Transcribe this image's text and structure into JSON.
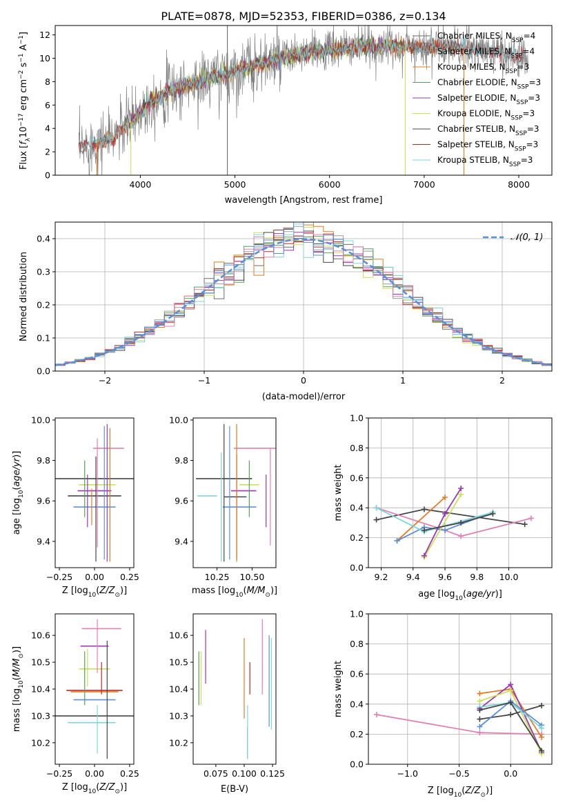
{
  "figure": {
    "title": "PLATE=0878, MJD=52353, FIBERID=0386, z=0.134"
  },
  "colors": {
    "Chabrier MILES": "#6a6a6a",
    "Salpeter MILES": "#999999",
    "Kroupa MILES": "#e07b1f",
    "Chabrier ELODIE": "#55a055",
    "Salpeter ELODIE": "#9b34b5",
    "Kroupa ELODIE": "#c9e05a",
    "Chabrier STELIB": "#444444",
    "Salpeter STELIB": "#c0261f",
    "Kroupa STELIB": "#7fd3dc",
    "gauss": "#5b8fd9",
    "pink": "#e27fb3",
    "blue": "#5b8fd9"
  },
  "chart_data": [
    {
      "id": "spectrum",
      "type": "line",
      "title": "PLATE=0878, MJD=52353, FIBERID=0386, z=0.134",
      "xlabel": "wavelength [Angstrom, rest frame]",
      "ylabel": "Flux [f_λ 10^-17 erg cm^-2 s^-1 A^-1]",
      "xlim": [
        3100,
        8350
      ],
      "ylim": [
        0,
        12.8
      ],
      "xticks": [
        4000,
        5000,
        6000,
        7000,
        8000
      ],
      "yticks": [
        0,
        2,
        4,
        6,
        8,
        10,
        12
      ],
      "legend_position": "top-right",
      "legend": [
        {
          "label": "Chabrier MILES, N_SSP=4",
          "color": "#6a6a6a"
        },
        {
          "label": "Salpeter MILES, N_SSP=4",
          "color": "#999999"
        },
        {
          "label": "Kroupa MILES, N_SSP=3",
          "color": "#e07b1f"
        },
        {
          "label": "Chabrier ELODIE, N_SSP=3",
          "color": "#55a055"
        },
        {
          "label": "Salpeter ELODIE, N_SSP=3",
          "color": "#9b34b5"
        },
        {
          "label": "Kroupa ELODIE, N_SSP=3",
          "color": "#c9e05a"
        },
        {
          "label": "Chabrier STELIB, N_SSP=3",
          "color": "#444444"
        },
        {
          "label": "Salpeter STELIB, N_SSP=3",
          "color": "#c0261f"
        },
        {
          "label": "Kroupa STELIB, N_SSP=3",
          "color": "#7fd3dc"
        }
      ],
      "data_trend": {
        "x": [
          3350,
          3500,
          3700,
          3900,
          4100,
          4300,
          4500,
          4700,
          5000,
          5300,
          5600,
          5900,
          6200,
          6500,
          6800,
          7100,
          7400,
          7700,
          8000,
          8100
        ],
        "y": [
          2.2,
          2.7,
          3.2,
          4.6,
          6.3,
          7.2,
          7.7,
          8.2,
          8.9,
          9.6,
          10.2,
          10.6,
          10.9,
          11.0,
          11.0,
          11.0,
          10.9,
          10.6,
          10.2,
          10.0
        ]
      },
      "model_ranges": [
        {
          "name": "Chabrier MILES",
          "x": [
            3540,
            7420
          ]
        },
        {
          "name": "Salpeter MILES",
          "x": [
            3540,
            7420
          ]
        },
        {
          "name": "Kroupa MILES",
          "x": [
            3540,
            7420
          ]
        },
        {
          "name": "Chabrier ELODIE",
          "x": [
            3900,
            6800
          ]
        },
        {
          "name": "Salpeter ELODIE",
          "x": [
            3900,
            6800
          ]
        },
        {
          "name": "Kroupa ELODIE",
          "x": [
            3900,
            6800
          ]
        },
        {
          "name": "Chabrier STELIB",
          "x": [
            3350,
            8050
          ]
        },
        {
          "name": "Salpeter STELIB",
          "x": [
            3350,
            8050
          ]
        },
        {
          "name": "Kroupa STELIB",
          "x": [
            3350,
            8050
          ]
        }
      ]
    },
    {
      "id": "residuals",
      "type": "line",
      "xlabel": "(data-model)/error",
      "ylabel": "Normed distribution",
      "xlim": [
        -2.5,
        2.5
      ],
      "ylim": [
        0,
        0.45
      ],
      "xticks": [
        -2,
        -1,
        0,
        1,
        2
      ],
      "yticks": [
        0.0,
        0.1,
        0.2,
        0.3,
        0.4
      ],
      "grid": true,
      "legend_position": "top-right",
      "legend": [
        {
          "label": "𝒩(0, 1)",
          "color": "#5b8fd9",
          "style": "dashed"
        }
      ],
      "step_histograms": "one normalized step histogram per model, bin width 0.1, approximately following N(0,1)"
    },
    {
      "id": "age_vs_Z",
      "type": "scatter",
      "xlabel": "Z [log10(Z/Z⊙)]",
      "ylabel": "age  [log10(age/yr)]",
      "xlim": [
        -0.28,
        0.28
      ],
      "ylim": [
        9.27,
        10.01
      ],
      "xticks": [
        -0.25,
        0.0,
        0.25
      ],
      "yticks": [
        9.4,
        9.6,
        9.8,
        10.0
      ],
      "errorbars": [
        {
          "x": 0.0,
          "y": 9.71,
          "xerr": 0.38,
          "yerr": 0.0,
          "color": "#444444"
        },
        {
          "x": 0.1,
          "y": 9.86,
          "xerr": 0.11,
          "yerr": 0.0,
          "color": "#e27fb3"
        },
        {
          "x": 0.02,
          "y": 9.68,
          "xerr": 0.13,
          "yerr": 0.0,
          "color": "#c9e05a"
        },
        {
          "x": 0.0,
          "y": 9.65,
          "xerr": 0.12,
          "yerr": 0.0,
          "color": "#9b34b5"
        },
        {
          "x": 0.0,
          "y": 9.625,
          "xerr": 0.19,
          "yerr": 0.0,
          "color": "#444444"
        },
        {
          "x": 0.0,
          "y": 9.57,
          "xerr": 0.15,
          "yerr": 0.0,
          "color": "#5b8fd9"
        },
        {
          "x": -0.07,
          "y": 9.66,
          "xerr": 0.0,
          "yerr": 0.14,
          "color": "#55a055"
        },
        {
          "x": -0.05,
          "y": 9.6,
          "xerr": 0.0,
          "yerr": 0.13,
          "color": "#9b34b5"
        },
        {
          "x": -0.02,
          "y": 9.57,
          "xerr": 0.0,
          "yerr": 0.09,
          "color": "#e07b1f"
        },
        {
          "x": 0.01,
          "y": 9.56,
          "xerr": 0.0,
          "yerr": 0.26,
          "color": "#444444"
        },
        {
          "x": 0.02,
          "y": 9.64,
          "xerr": 0.0,
          "yerr": 0.27,
          "color": "#e27fb3"
        },
        {
          "x": 0.07,
          "y": 9.64,
          "xerr": 0.0,
          "yerr": 0.33,
          "color": "#5b8fd9"
        },
        {
          "x": 0.09,
          "y": 9.64,
          "xerr": 0.0,
          "yerr": 0.34,
          "color": "#9b34b5"
        },
        {
          "x": 0.11,
          "y": 9.63,
          "xerr": 0.0,
          "yerr": 0.33,
          "color": "#e07b1f"
        }
      ]
    },
    {
      "id": "age_vs_mass",
      "type": "scatter",
      "xlabel": "mass [log10(M/M⊙)]",
      "ylabel": "",
      "xlim": [
        10.08,
        10.67
      ],
      "ylim": [
        9.27,
        10.01
      ],
      "xticks": [
        10.25,
        10.5
      ],
      "yticks": [
        9.4,
        9.6,
        9.8,
        10.0
      ],
      "errorbars": [
        {
          "x": 10.3,
          "y": 9.71,
          "xerr": 0.2,
          "yerr": 0.0,
          "color": "#444444"
        },
        {
          "x": 10.52,
          "y": 9.86,
          "xerr": 0.15,
          "yerr": 0.0,
          "color": "#e27fb3"
        },
        {
          "x": 10.48,
          "y": 9.68,
          "xerr": 0.07,
          "yerr": 0.0,
          "color": "#c9e05a"
        },
        {
          "x": 10.44,
          "y": 9.65,
          "xerr": 0.09,
          "yerr": 0.0,
          "color": "#9b34b5"
        },
        {
          "x": 10.38,
          "y": 9.62,
          "xerr": 0.08,
          "yerr": 0.0,
          "color": "#444444"
        },
        {
          "x": 10.41,
          "y": 9.57,
          "xerr": 0.12,
          "yerr": 0.0,
          "color": "#5b8fd9"
        },
        {
          "x": 10.18,
          "y": 9.625,
          "xerr": 0.07,
          "yerr": 0.0,
          "color": "#7fd3dc"
        },
        {
          "x": 10.28,
          "y": 9.57,
          "xerr": 0.0,
          "yerr": 0.27,
          "color": "#7fd3dc"
        },
        {
          "x": 10.3,
          "y": 9.64,
          "xerr": 0.0,
          "yerr": 0.34,
          "color": "#444444"
        },
        {
          "x": 10.34,
          "y": 9.64,
          "xerr": 0.0,
          "yerr": 0.33,
          "color": "#5b8fd9"
        },
        {
          "x": 10.39,
          "y": 9.57,
          "xerr": 0.0,
          "yerr": 0.26,
          "color": "#c0261f"
        },
        {
          "x": 10.39,
          "y": 9.64,
          "xerr": 0.0,
          "yerr": 0.34,
          "color": "#e07b1f"
        },
        {
          "x": 10.48,
          "y": 9.66,
          "xerr": 0.0,
          "yerr": 0.14,
          "color": "#55a055"
        },
        {
          "x": 10.6,
          "y": 9.6,
          "xerr": 0.0,
          "yerr": 0.13,
          "color": "#9b34b5"
        },
        {
          "x": 10.63,
          "y": 9.62,
          "xerr": 0.0,
          "yerr": 0.24,
          "color": "#e27fb3"
        }
      ]
    },
    {
      "id": "weight_vs_age",
      "type": "line",
      "xlabel": "age  [log10(age/yr)]",
      "ylabel": "mass weight",
      "xlim": [
        9.12,
        10.27
      ],
      "ylim": [
        0,
        1.0
      ],
      "xticks": [
        9.2,
        9.4,
        9.6,
        9.8,
        10.0
      ],
      "yticks": [
        0.0,
        0.2,
        0.4,
        0.6,
        0.8,
        1.0
      ],
      "grid": true,
      "series": [
        {
          "color": "#444444",
          "x": [
            9.17,
            9.47,
            10.1
          ],
          "y": [
            0.32,
            0.39,
            0.29
          ]
        },
        {
          "color": "#e27fb3",
          "x": [
            9.17,
            9.6,
            9.7,
            10.14
          ],
          "y": [
            0.4,
            0.25,
            0.21,
            0.33
          ]
        },
        {
          "color": "#e07b1f",
          "x": [
            9.3,
            9.6
          ],
          "y": [
            0.18,
            0.47
          ]
        },
        {
          "color": "#5b8fd9",
          "x": [
            9.3,
            9.47,
            9.6,
            9.9
          ],
          "y": [
            0.18,
            0.27,
            0.25,
            0.37
          ]
        },
        {
          "color": "#7fd3dc",
          "x": [
            9.17,
            9.47,
            9.6,
            9.9
          ],
          "y": [
            0.4,
            0.24,
            0.28,
            0.37
          ]
        },
        {
          "color": "#c9e05a",
          "x": [
            9.47,
            9.7
          ],
          "y": [
            0.07,
            0.49
          ]
        },
        {
          "color": "#9b34b5",
          "x": [
            9.47,
            9.6,
            9.7
          ],
          "y": [
            0.08,
            0.36,
            0.53
          ]
        },
        {
          "color": "#444444",
          "x": [
            9.47,
            9.7,
            9.9
          ],
          "y": [
            0.25,
            0.3,
            0.36
          ]
        }
      ]
    },
    {
      "id": "mass_vs_Z",
      "type": "scatter",
      "xlabel": "Z [log10(Z/Z⊙)]",
      "ylabel": "mass [log10(M/M⊙)]",
      "xlim": [
        -0.28,
        0.28
      ],
      "ylim": [
        10.12,
        10.68
      ],
      "xticks": [
        -0.25,
        0.0,
        0.25
      ],
      "yticks": [
        10.2,
        10.3,
        10.4,
        10.5,
        10.6
      ],
      "errorbars": [
        {
          "x": 0.05,
          "y": 10.625,
          "xerr": 0.14,
          "yerr": 0.0,
          "color": "#e27fb3"
        },
        {
          "x": 0.0,
          "y": 10.56,
          "xerr": 0.1,
          "yerr": 0.0,
          "color": "#9b34b5"
        },
        {
          "x": 0.0,
          "y": 10.475,
          "xerr": 0.11,
          "yerr": 0.0,
          "color": "#c9e05a"
        },
        {
          "x": 0.0,
          "y": 10.395,
          "xerr": 0.2,
          "yerr": 0.0,
          "color": "#c0261f"
        },
        {
          "x": 0.0,
          "y": 10.39,
          "xerr": 0.17,
          "yerr": 0.0,
          "color": "#e07b1f"
        },
        {
          "x": 0.0,
          "y": 10.36,
          "xerr": 0.15,
          "yerr": 0.0,
          "color": "#5b8fd9"
        },
        {
          "x": 0.0,
          "y": 10.3,
          "xerr": 0.38,
          "yerr": 0.0,
          "color": "#444444"
        },
        {
          "x": -0.02,
          "y": 10.275,
          "xerr": 0.17,
          "yerr": 0.0,
          "color": "#7fd3dc"
        },
        {
          "x": -0.07,
          "y": 10.44,
          "xerr": 0.0,
          "yerr": 0.1,
          "color": "#55a055"
        },
        {
          "x": -0.05,
          "y": 10.48,
          "xerr": 0.0,
          "yerr": 0.07,
          "color": "#c9e05a"
        },
        {
          "x": 0.02,
          "y": 10.56,
          "xerr": 0.0,
          "yerr": 0.1,
          "color": "#e27fb3"
        },
        {
          "x": 0.02,
          "y": 10.25,
          "xerr": 0.0,
          "yerr": 0.09,
          "color": "#7fd3dc"
        },
        {
          "x": 0.09,
          "y": 10.36,
          "xerr": 0.0,
          "yerr": 0.22,
          "color": "#444444"
        },
        {
          "x": 0.05,
          "y": 10.44,
          "xerr": 0.0,
          "yerr": 0.06,
          "color": "#c0261f"
        }
      ]
    },
    {
      "id": "mass_vs_ebv",
      "type": "scatter",
      "xlabel": "E(B-V)",
      "ylabel": "",
      "xlim": [
        0.055,
        0.128
      ],
      "ylim": [
        10.12,
        10.68
      ],
      "xticks": [
        0.075,
        0.1,
        0.125
      ],
      "yticks": [
        10.2,
        10.3,
        10.4,
        10.5,
        10.6
      ],
      "errorbars": [
        {
          "x": 0.06,
          "y": 10.44,
          "xerr": 0.0,
          "yerr": 0.1,
          "color": "#55a055"
        },
        {
          "x": 0.062,
          "y": 10.44,
          "xerr": 0.0,
          "yerr": 0.1,
          "color": "#c9e05a"
        },
        {
          "x": 0.066,
          "y": 10.52,
          "xerr": 0.0,
          "yerr": 0.1,
          "color": "#9b34b5"
        },
        {
          "x": 0.1,
          "y": 10.44,
          "xerr": 0.0,
          "yerr": 0.15,
          "color": "#e07b1f"
        },
        {
          "x": 0.103,
          "y": 10.2,
          "xerr": 0.0,
          "yerr": 0.06,
          "color": "#444444"
        },
        {
          "x": 0.103,
          "y": 10.24,
          "xerr": 0.0,
          "yerr": 0.1,
          "color": "#7fd3dc"
        },
        {
          "x": 0.105,
          "y": 10.44,
          "xerr": 0.0,
          "yerr": 0.06,
          "color": "#c0261f"
        },
        {
          "x": 0.116,
          "y": 10.52,
          "xerr": 0.0,
          "yerr": 0.14,
          "color": "#e27fb3"
        },
        {
          "x": 0.122,
          "y": 10.43,
          "xerr": 0.0,
          "yerr": 0.17,
          "color": "#5b8fd9"
        },
        {
          "x": 0.124,
          "y": 10.42,
          "xerr": 0.0,
          "yerr": 0.17,
          "color": "#7fd3dc"
        }
      ]
    },
    {
      "id": "weight_vs_Z",
      "type": "line",
      "xlabel": "Z [log10(Z/Z⊙)]",
      "ylabel": "mass weight",
      "xlim": [
        -1.38,
        0.4
      ],
      "ylim": [
        0,
        1.0
      ],
      "xticks": [
        -1.0,
        -0.5,
        0.0
      ],
      "yticks": [
        0.0,
        0.2,
        0.4,
        0.6,
        0.8,
        1.0
      ],
      "grid": true,
      "series": [
        {
          "color": "#e27fb3",
          "x": [
            -1.3,
            -0.3,
            0.3
          ],
          "y": [
            0.33,
            0.21,
            0.2
          ]
        },
        {
          "color": "#444444",
          "x": [
            -0.3,
            0.0,
            0.3
          ],
          "y": [
            0.3,
            0.33,
            0.39
          ]
        },
        {
          "color": "#e07b1f",
          "x": [
            -0.3,
            0.0,
            0.3
          ],
          "y": [
            0.47,
            0.5,
            0.18
          ]
        },
        {
          "color": "#9b34b5",
          "x": [
            -0.3,
            0.0,
            0.3
          ],
          "y": [
            0.37,
            0.53,
            0.08
          ]
        },
        {
          "color": "#c9e05a",
          "x": [
            -0.3,
            0.0,
            0.3
          ],
          "y": [
            0.42,
            0.49,
            0.07
          ]
        },
        {
          "color": "#5b8fd9",
          "x": [
            -0.3,
            0.0,
            0.3
          ],
          "y": [
            0.25,
            0.42,
            0.26
          ]
        },
        {
          "color": "#7fd3dc",
          "x": [
            -0.3,
            0.0,
            0.3
          ],
          "y": [
            0.38,
            0.41,
            0.24
          ]
        },
        {
          "color": "#444444",
          "x": [
            -0.3,
            0.0,
            0.3
          ],
          "y": [
            0.36,
            0.41,
            0.09
          ]
        }
      ]
    }
  ]
}
